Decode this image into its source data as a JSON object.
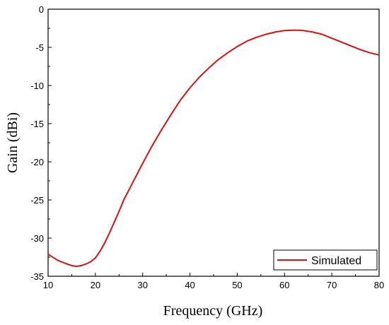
{
  "chart_data": {
    "type": "line",
    "xlabel": "Frequency (GHz)",
    "ylabel": "Gain (dBi)",
    "xlim": [
      10,
      80
    ],
    "ylim": [
      -35,
      0
    ],
    "xticks": [
      10,
      20,
      30,
      40,
      50,
      60,
      70,
      80
    ],
    "yticks": [
      0,
      -5,
      -10,
      -15,
      -20,
      -25,
      -30,
      -35
    ],
    "grid": false,
    "legend_position": "bottom-right",
    "series": [
      {
        "name": "Simulated",
        "color": "#e01010",
        "x": [
          10,
          12,
          14,
          15,
          16,
          17,
          18,
          19,
          20,
          21,
          22,
          23,
          24,
          25,
          26,
          28,
          30,
          32,
          34,
          36,
          38,
          40,
          42,
          44,
          46,
          48,
          50,
          52,
          54,
          56,
          58,
          60,
          62,
          63,
          64,
          66,
          68,
          70,
          72,
          74,
          76,
          78,
          80
        ],
        "values": [
          -32.1,
          -32.9,
          -33.4,
          -33.6,
          -33.7,
          -33.6,
          -33.4,
          -33.1,
          -32.6,
          -31.7,
          -30.6,
          -29.3,
          -27.9,
          -26.5,
          -25.0,
          -22.6,
          -20.2,
          -17.9,
          -15.8,
          -13.8,
          -11.9,
          -10.3,
          -8.9,
          -7.7,
          -6.6,
          -5.7,
          -4.9,
          -4.2,
          -3.7,
          -3.3,
          -3.0,
          -2.8,
          -2.75,
          -2.75,
          -2.8,
          -3.0,
          -3.3,
          -3.8,
          -4.3,
          -4.8,
          -5.3,
          -5.7,
          -6.0
        ]
      }
    ]
  }
}
